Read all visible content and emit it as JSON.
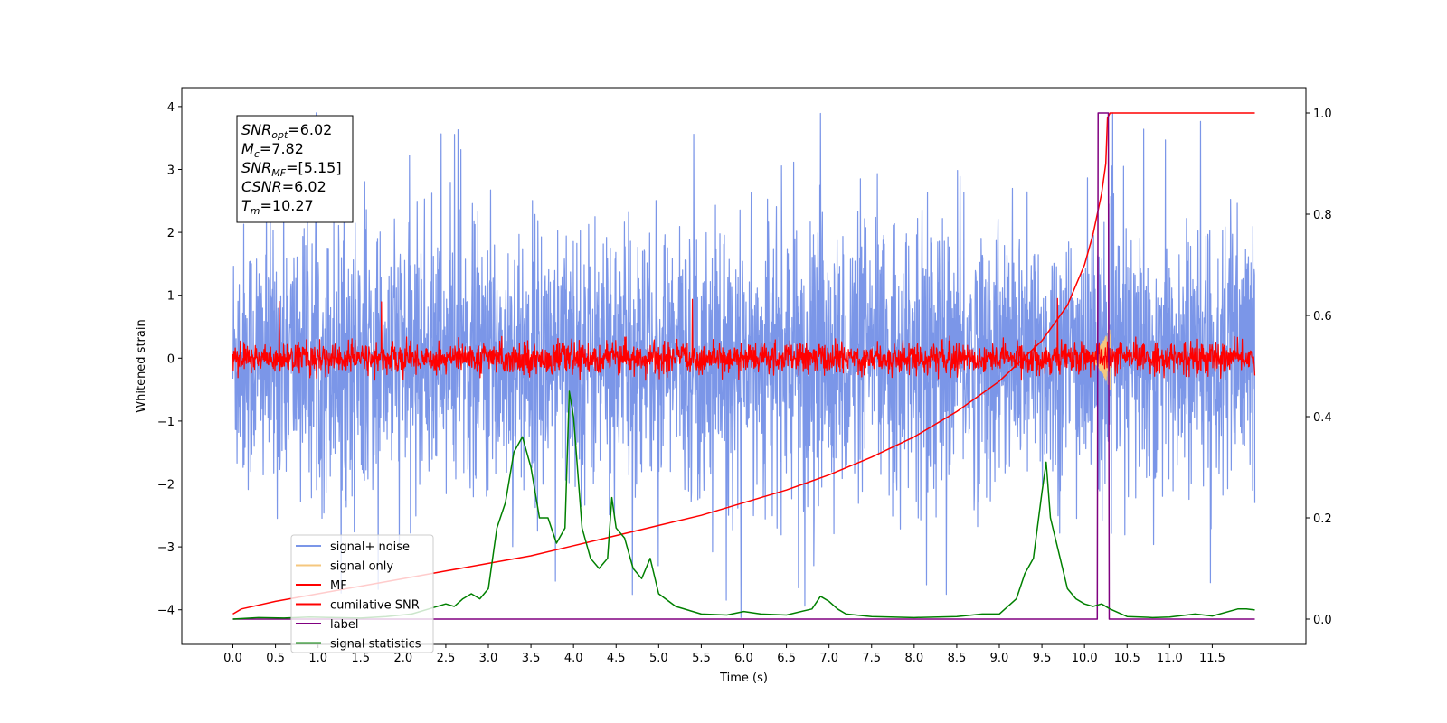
{
  "chart_data": {
    "type": "line",
    "title": "",
    "xlabel": "Time (s)",
    "ylabel": "Whitened strain",
    "xlim": [
      -0.6,
      12.6
    ],
    "ylim": [
      -4.55,
      4.3
    ],
    "y2lim": [
      -0.05,
      1.05
    ],
    "x_ticks": [
      "0.0",
      "0.5",
      "1.0",
      "1.5",
      "2.0",
      "2.5",
      "3.0",
      "3.5",
      "4.0",
      "4.5",
      "5.0",
      "5.5",
      "6.0",
      "6.5",
      "7.0",
      "7.5",
      "8.0",
      "8.5",
      "9.0",
      "9.5",
      "10.0",
      "10.5",
      "11.0",
      "11.5"
    ],
    "y_ticks": [
      "4",
      "3",
      "2",
      "1",
      "0",
      "−1",
      "−2",
      "−3",
      "−4"
    ],
    "y2_ticks": [
      "1.0",
      "0.8",
      "0.6",
      "0.4",
      "0.2",
      "0.0"
    ],
    "grid": false,
    "legend_position": "lower-left",
    "annotation": [
      {
        "sym": "SNR",
        "sub": "opt",
        "val": "=6.02"
      },
      {
        "sym": "M",
        "sub": "c",
        "val": "=7.82"
      },
      {
        "sym": "SNR",
        "sub": "MF",
        "val": "=[5.15]"
      },
      {
        "sym": "CSNR",
        "sub": "",
        "val": "=6.02"
      },
      {
        "sym": "T",
        "sub": "m",
        "val": "=10.27"
      }
    ],
    "series": [
      {
        "name": "signal+ noise",
        "color": "#7b96e8",
        "axis": "left",
        "kind": "noise",
        "x_range": [
          0,
          12
        ],
        "center": 0.0,
        "amplitude_sd": 1.05,
        "peak_max": 3.9,
        "peak_min": -4.15
      },
      {
        "name": "signal only",
        "color": "#f5c77e",
        "axis": "left",
        "kind": "chirp",
        "x_range": [
          10.0,
          10.3
        ],
        "peak": 0.5
      },
      {
        "name": "MF",
        "color": "#ff0000",
        "axis": "left",
        "kind": "noise",
        "x_range": [
          0,
          12
        ],
        "center": 0.0,
        "amplitude_sd": 0.12,
        "peak_max": 1.0,
        "peak_min": -0.35
      },
      {
        "name": "cumilative SNR",
        "color": "#ff0000",
        "axis": "right",
        "x": [
          0.0,
          0.1,
          0.5,
          1.0,
          1.5,
          2.0,
          2.5,
          3.0,
          3.5,
          4.0,
          4.5,
          5.0,
          5.5,
          6.0,
          6.5,
          7.0,
          7.5,
          8.0,
          8.5,
          9.0,
          9.5,
          9.8,
          10.0,
          10.1,
          10.2,
          10.25,
          10.27,
          10.3,
          11.0,
          12.0
        ],
        "y": [
          0.01,
          0.02,
          0.035,
          0.05,
          0.065,
          0.08,
          0.095,
          0.11,
          0.125,
          0.145,
          0.165,
          0.185,
          0.205,
          0.23,
          0.255,
          0.285,
          0.32,
          0.36,
          0.41,
          0.47,
          0.55,
          0.62,
          0.7,
          0.76,
          0.84,
          0.9,
          0.99,
          1.0,
          1.0,
          1.0
        ]
      },
      {
        "name": "label",
        "color": "#800080",
        "axis": "right",
        "x": [
          0.0,
          10.15,
          10.16,
          10.28,
          10.29,
          12.0
        ],
        "y": [
          0.0,
          0.0,
          1.0,
          1.0,
          0.0,
          0.0
        ]
      },
      {
        "name": "signal statistics",
        "color": "#008000",
        "axis": "right",
        "x": [
          0.0,
          0.3,
          0.6,
          0.9,
          1.2,
          1.5,
          1.8,
          2.1,
          2.3,
          2.5,
          2.6,
          2.7,
          2.8,
          2.9,
          3.0,
          3.1,
          3.2,
          3.3,
          3.4,
          3.5,
          3.6,
          3.7,
          3.8,
          3.9,
          3.95,
          4.0,
          4.1,
          4.2,
          4.3,
          4.4,
          4.45,
          4.5,
          4.6,
          4.7,
          4.8,
          4.9,
          5.0,
          5.2,
          5.5,
          5.8,
          6.0,
          6.2,
          6.5,
          6.8,
          6.9,
          7.0,
          7.1,
          7.2,
          7.5,
          8.0,
          8.5,
          8.8,
          9.0,
          9.2,
          9.3,
          9.4,
          9.5,
          9.55,
          9.6,
          9.7,
          9.8,
          9.9,
          10.0,
          10.1,
          10.2,
          10.3,
          10.5,
          10.8,
          11.0,
          11.3,
          11.5,
          11.8,
          11.9,
          12.0
        ],
        "y": [
          0.0,
          0.003,
          0.002,
          0.004,
          0.003,
          0.002,
          0.005,
          0.01,
          0.02,
          0.03,
          0.025,
          0.04,
          0.05,
          0.04,
          0.06,
          0.18,
          0.23,
          0.33,
          0.36,
          0.3,
          0.2,
          0.2,
          0.15,
          0.18,
          0.45,
          0.4,
          0.18,
          0.12,
          0.1,
          0.12,
          0.24,
          0.18,
          0.16,
          0.1,
          0.08,
          0.12,
          0.05,
          0.025,
          0.01,
          0.008,
          0.015,
          0.01,
          0.008,
          0.02,
          0.045,
          0.035,
          0.02,
          0.01,
          0.005,
          0.003,
          0.005,
          0.01,
          0.01,
          0.04,
          0.09,
          0.12,
          0.25,
          0.31,
          0.2,
          0.13,
          0.06,
          0.04,
          0.03,
          0.025,
          0.03,
          0.02,
          0.005,
          0.003,
          0.004,
          0.01,
          0.006,
          0.02,
          0.02,
          0.018
        ]
      }
    ]
  }
}
